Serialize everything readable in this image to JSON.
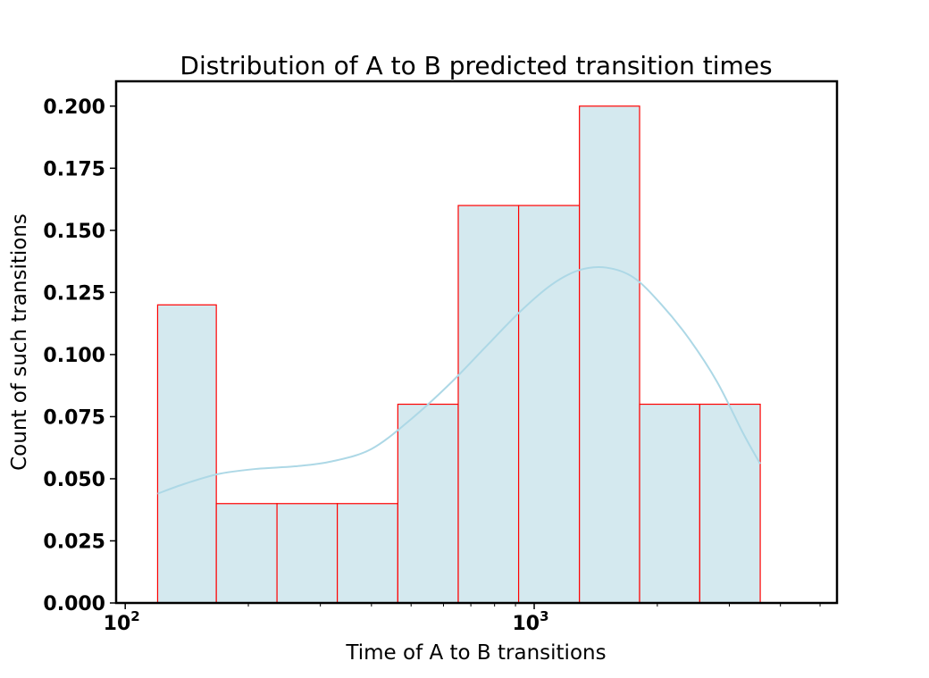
{
  "chart_data": {
    "type": "bar",
    "title": "Distribution of A to B predicted transition times",
    "xlabel": "Time of A to B transitions",
    "ylabel": "Count of such transitions",
    "x_scale": "log",
    "xlim": [
      95,
      5500
    ],
    "ylim": [
      0,
      0.21
    ],
    "x_ticks": [
      {
        "value": 100,
        "base": "10",
        "exp": "2"
      },
      {
        "value": 1000,
        "base": "10",
        "exp": "3"
      }
    ],
    "y_ticks": [
      "0.000",
      "0.025",
      "0.050",
      "0.075",
      "0.100",
      "0.125",
      "0.150",
      "0.175",
      "0.200"
    ],
    "bin_edges": [
      120,
      167,
      235,
      330,
      464,
      652,
      916,
      1290,
      1810,
      2540,
      3570
    ],
    "values": [
      0.12,
      0.04,
      0.04,
      0.04,
      0.08,
      0.16,
      0.16,
      0.2,
      0.08,
      0.08
    ],
    "kde": {
      "x": [
        120,
        140,
        170,
        210,
        260,
        320,
        400,
        500,
        620,
        760,
        920,
        1100,
        1290,
        1500,
        1750,
        2050,
        2400,
        2800,
        3250,
        3570
      ],
      "y": [
        0.044,
        0.048,
        0.052,
        0.054,
        0.055,
        0.057,
        0.062,
        0.074,
        0.088,
        0.103,
        0.117,
        0.128,
        0.134,
        0.135,
        0.131,
        0.12,
        0.106,
        0.089,
        0.068,
        0.056
      ]
    },
    "colors": {
      "bar_fill": "#d4e9ef",
      "bar_edge": "#ff0000",
      "kde_line": "#add8e6",
      "axes": "#000000"
    },
    "grid": false,
    "legend": "none"
  }
}
